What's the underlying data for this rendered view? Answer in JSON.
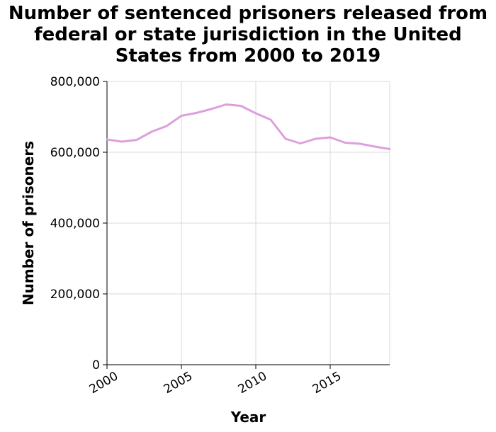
{
  "chart_data": {
    "type": "line",
    "title_lines": [
      "Number of sentenced prisoners released from",
      "federal or state jurisdiction in the United",
      "States from 2000 to 2019"
    ],
    "xlabel": "Year",
    "ylabel": "Number of prisoners",
    "xlim": [
      2000,
      2019
    ],
    "ylim": [
      0,
      800000
    ],
    "x_ticks": [
      2000,
      2005,
      2010,
      2015
    ],
    "x_tick_labels": [
      "2000",
      "2005",
      "2010",
      "2015"
    ],
    "y_ticks": [
      0,
      200000,
      400000,
      600000,
      800000
    ],
    "y_tick_labels": [
      "0",
      "200,000",
      "400,000",
      "600,000",
      "800,000"
    ],
    "grid": true,
    "line_color": "#dda0dd",
    "series": [
      {
        "x": [
          2000,
          2001,
          2002,
          2003,
          2004,
          2005,
          2006,
          2007,
          2008,
          2009,
          2010,
          2011,
          2012,
          2013,
          2014,
          2015,
          2016,
          2017,
          2018,
          2019
        ],
        "values": [
          636000,
          630000,
          635000,
          658000,
          674000,
          703000,
          711000,
          722000,
          735000,
          731000,
          710000,
          692000,
          638000,
          625000,
          638000,
          642000,
          627000,
          624000,
          616000,
          609000
        ]
      }
    ]
  }
}
